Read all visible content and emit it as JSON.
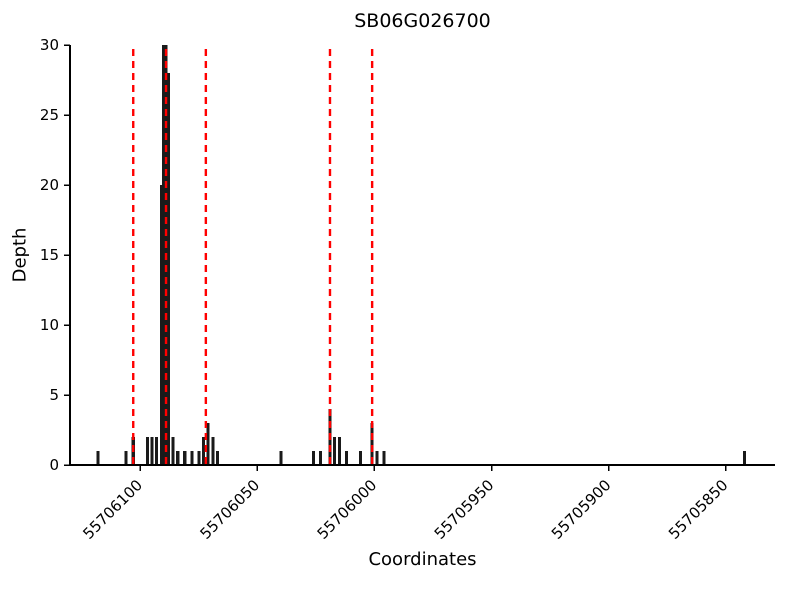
{
  "chart_data": {
    "type": "bar",
    "title": "SB06G026700",
    "xlabel": "Coordinates",
    "ylabel": "Depth",
    "x_axis_reversed": true,
    "xlim": [
      55706130,
      55705829
    ],
    "ylim": [
      0,
      30
    ],
    "xticks": [
      55706100,
      55706050,
      55706000,
      55705950,
      55705900,
      55705850
    ],
    "yticks": [
      0,
      5,
      10,
      15,
      20,
      25,
      30
    ],
    "bar_color": "#1a1a1a",
    "vline_color": "#ff0000",
    "vlines": [
      55706103,
      55706089,
      55706072,
      55706019,
      55706001
    ],
    "bars": [
      {
        "x": 55706118,
        "depth": 1
      },
      {
        "x": 55706106,
        "depth": 1
      },
      {
        "x": 55706103,
        "depth": 2
      },
      {
        "x": 55706097,
        "depth": 2
      },
      {
        "x": 55706095,
        "depth": 2
      },
      {
        "x": 55706093,
        "depth": 2
      },
      {
        "x": 55706091,
        "depth": 20
      },
      {
        "x": 55706090,
        "depth": 30
      },
      {
        "x": 55706089,
        "depth": 30
      },
      {
        "x": 55706088,
        "depth": 28
      },
      {
        "x": 55706086,
        "depth": 2
      },
      {
        "x": 55706084,
        "depth": 1
      },
      {
        "x": 55706081,
        "depth": 1
      },
      {
        "x": 55706078,
        "depth": 1
      },
      {
        "x": 55706075,
        "depth": 1
      },
      {
        "x": 55706073,
        "depth": 2
      },
      {
        "x": 55706071,
        "depth": 3
      },
      {
        "x": 55706069,
        "depth": 2
      },
      {
        "x": 55706067,
        "depth": 1
      },
      {
        "x": 55706040,
        "depth": 1
      },
      {
        "x": 55706026,
        "depth": 1
      },
      {
        "x": 55706023,
        "depth": 1
      },
      {
        "x": 55706019,
        "depth": 4
      },
      {
        "x": 55706017,
        "depth": 2
      },
      {
        "x": 55706015,
        "depth": 2
      },
      {
        "x": 55706012,
        "depth": 1
      },
      {
        "x": 55706006,
        "depth": 1
      },
      {
        "x": 55706001,
        "depth": 3
      },
      {
        "x": 55705999,
        "depth": 1
      },
      {
        "x": 55705996,
        "depth": 1
      },
      {
        "x": 55705842,
        "depth": 1
      }
    ]
  }
}
